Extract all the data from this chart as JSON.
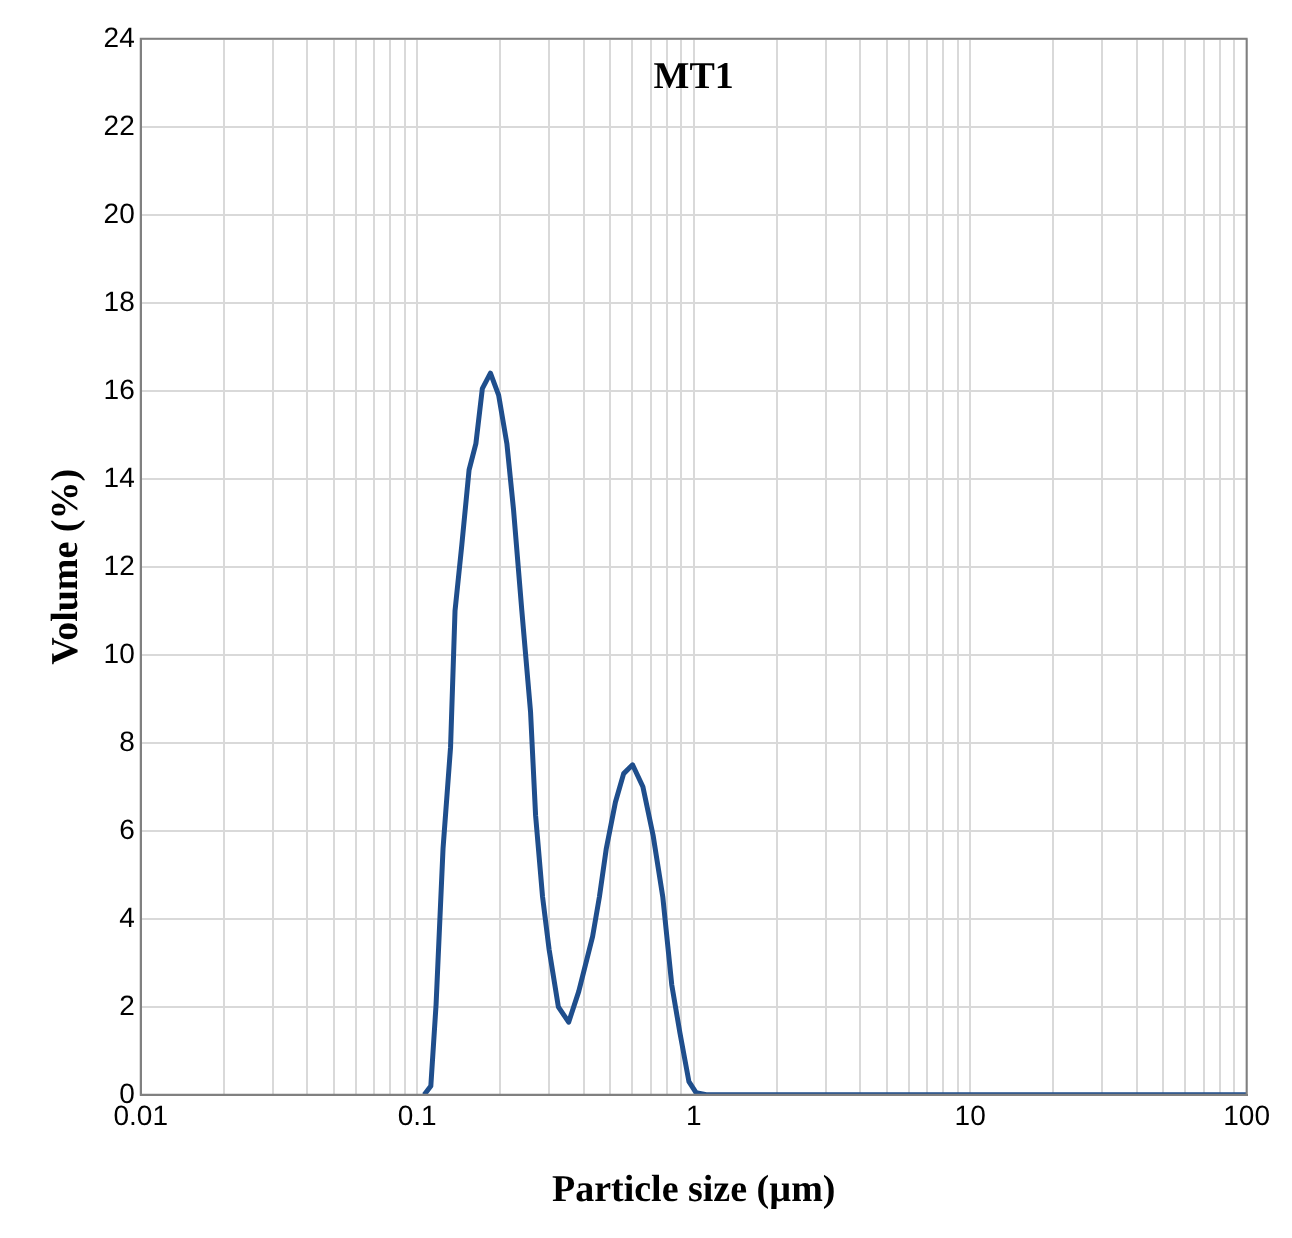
{
  "chart_data": {
    "type": "line",
    "title": "MT1",
    "xlabel": "Particle size (µm)",
    "ylabel": "Volume (%)",
    "log": "x",
    "grid": true,
    "legend": false,
    "marker": "none",
    "line_style": "solid",
    "xlim": [
      0.01,
      100
    ],
    "xticks": [
      0.01,
      {
        "value": 0.02,
        "label": null
      },
      {
        "value": 0.03,
        "label": null
      },
      {
        "value": 0.04,
        "label": null
      },
      {
        "value": 0.05,
        "label": null
      },
      {
        "value": 0.06,
        "label": null
      },
      {
        "value": 0.07,
        "label": null
      },
      {
        "value": 0.08,
        "label": null
      },
      {
        "value": 0.09,
        "label": null
      },
      0.1,
      {
        "value": 0.2,
        "label": null
      },
      {
        "value": 0.3,
        "label": null
      },
      {
        "value": 0.4,
        "label": null
      },
      {
        "value": 0.5,
        "label": null
      },
      {
        "value": 0.6,
        "label": null
      },
      {
        "value": 0.7,
        "label": null
      },
      {
        "value": 0.8,
        "label": null
      },
      {
        "value": 0.9,
        "label": null
      },
      1,
      {
        "value": 2,
        "label": null
      },
      {
        "value": 3,
        "label": null
      },
      {
        "value": 4,
        "label": null
      },
      {
        "value": 5,
        "label": null
      },
      {
        "value": 6,
        "label": null
      },
      {
        "value": 7,
        "label": null
      },
      {
        "value": 8,
        "label": null
      },
      {
        "value": 9,
        "label": null
      },
      10,
      {
        "value": 20,
        "label": null
      },
      {
        "value": 30,
        "label": null
      },
      {
        "value": 40,
        "label": null
      },
      {
        "value": 50,
        "label": null
      },
      {
        "value": 60,
        "label": null
      },
      {
        "value": 70,
        "label": null
      },
      {
        "value": 80,
        "label": null
      },
      {
        "value": 90,
        "label": null
      },
      100
    ],
    "ylim": [
      0,
      24
    ],
    "yticks": [
      0,
      2,
      4,
      6,
      8,
      10,
      12,
      14,
      16,
      18,
      20,
      22,
      24
    ],
    "series": [
      {
        "color": "#1f4e8c",
        "x": [
          0.106,
          0.112,
          0.117,
          0.124,
          0.132,
          0.137,
          0.145,
          0.154,
          0.163,
          0.172,
          0.184,
          0.197,
          0.211,
          0.223,
          0.239,
          0.257,
          0.268,
          0.284,
          0.3,
          0.324,
          0.353,
          0.384,
          0.431,
          0.456,
          0.483,
          0.521,
          0.558,
          0.601,
          0.655,
          0.713,
          0.773,
          0.833,
          0.892,
          0.961,
          1.02,
          1.11,
          100
        ],
        "values": [
          0,
          0.2,
          2.05,
          5.6,
          7.9,
          11.0,
          12.5,
          14.2,
          14.8,
          16.05,
          16.4,
          15.9,
          14.8,
          13.3,
          11.0,
          8.7,
          6.35,
          4.5,
          3.3,
          2.0,
          1.65,
          2.35,
          3.6,
          4.5,
          5.6,
          6.65,
          7.3,
          7.5,
          7.0,
          5.9,
          4.5,
          2.5,
          1.4,
          0.3,
          0.05,
          0,
          0
        ]
      }
    ]
  }
}
